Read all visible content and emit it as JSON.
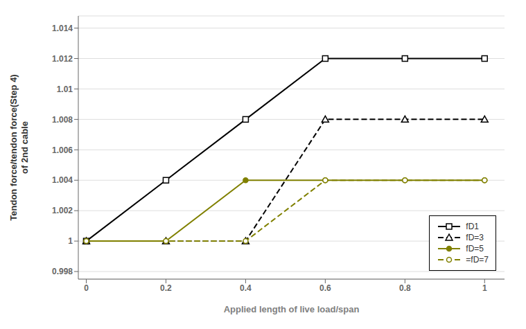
{
  "chart_data": {
    "type": "line",
    "x": [
      0,
      0.2,
      0.4,
      0.6,
      0.8,
      1.0
    ],
    "series": [
      {
        "name": "fD1",
        "color": "#000000",
        "marker": "square-open",
        "line_style": "solid",
        "values": [
          1.0,
          1.004,
          1.008,
          1.012,
          1.012,
          1.012
        ]
      },
      {
        "name": "fD=3",
        "color": "#000000",
        "marker": "triangle-open",
        "line_style": "dashed",
        "values": [
          1.0,
          1.0,
          1.0,
          1.008,
          1.008,
          1.008
        ]
      },
      {
        "name": "fD=5",
        "color": "#808000",
        "marker": "circle",
        "line_style": "solid",
        "values": [
          1.0,
          1.0,
          1.004,
          1.004,
          1.004,
          1.004
        ]
      },
      {
        "name": "=fD=7",
        "color": "#808000",
        "marker": "circle-open",
        "line_style": "dashed",
        "values": [
          1.0,
          1.0,
          1.0,
          1.004,
          1.004,
          1.004
        ]
      }
    ],
    "xlabel": "Applied length of live load/span",
    "ylabel": "Tendon force/tendon force(Step 4)\nof 2nd cable",
    "xlim": [
      -0.02,
      1.05
    ],
    "ylim": [
      0.9975,
      1.0148
    ],
    "xticks": [
      0,
      0.2,
      0.4,
      0.6,
      0.8,
      1
    ],
    "yticks": [
      0.998,
      1,
      1.002,
      1.004,
      1.006,
      1.008,
      1.01,
      1.012,
      1.014
    ],
    "grid": true,
    "legend": "lower right"
  }
}
